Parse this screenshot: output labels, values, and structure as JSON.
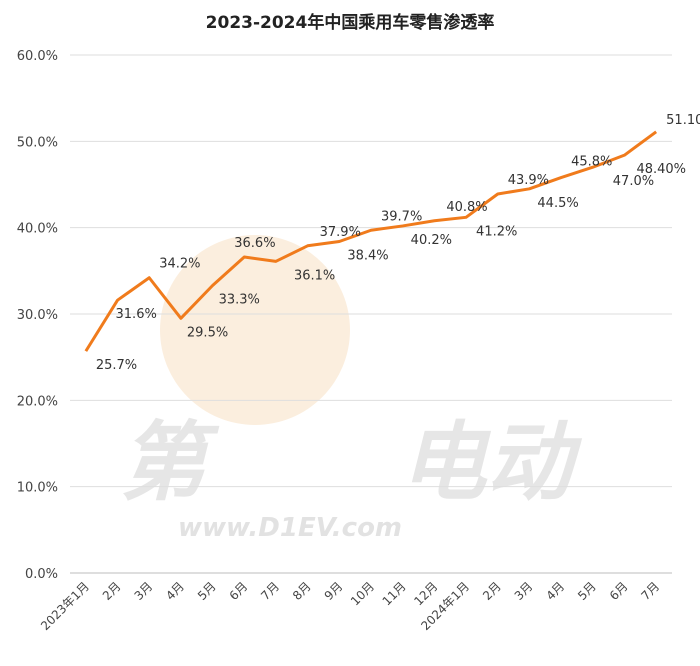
{
  "chart_data": {
    "type": "line",
    "title": "2023-2024年中国乘用车零售渗透率",
    "categories": [
      "2023年1月",
      "2月",
      "3月",
      "4月",
      "5月",
      "6月",
      "7月",
      "8月",
      "9月",
      "10月",
      "11月",
      "12月",
      "2024年1月",
      "2月",
      "3月",
      "4月",
      "5月",
      "6月",
      "7月"
    ],
    "series": [
      {
        "values": [
          25.7,
          31.6,
          34.2,
          29.5,
          33.3,
          36.6,
          36.1,
          37.9,
          38.4,
          39.7,
          40.2,
          40.8,
          41.2,
          43.9,
          44.5,
          45.8,
          47.0,
          48.4,
          51.1
        ],
        "labels": [
          "25.7%",
          "31.6%",
          "34.2%",
          "29.5%",
          "33.3%",
          "36.6%",
          "36.1%",
          "37.9%",
          "38.4%",
          "39.7%",
          "40.2%",
          "40.8%",
          "41.2%",
          "43.9%",
          "44.5%",
          "45.8%",
          "47.0%",
          "48.40%",
          "51.10%"
        ],
        "color": "#f07b1c"
      }
    ],
    "ylim": [
      0,
      60
    ],
    "yticks": [
      "0.0%",
      "10.0%",
      "20.0%",
      "30.0%",
      "40.0%",
      "50.0%",
      "60.0%"
    ],
    "grid": true,
    "legend": "none"
  },
  "watermark": {
    "brand_text": "第 电动",
    "url_text": "www.D1EV.com",
    "color": "#e2e2e2"
  }
}
